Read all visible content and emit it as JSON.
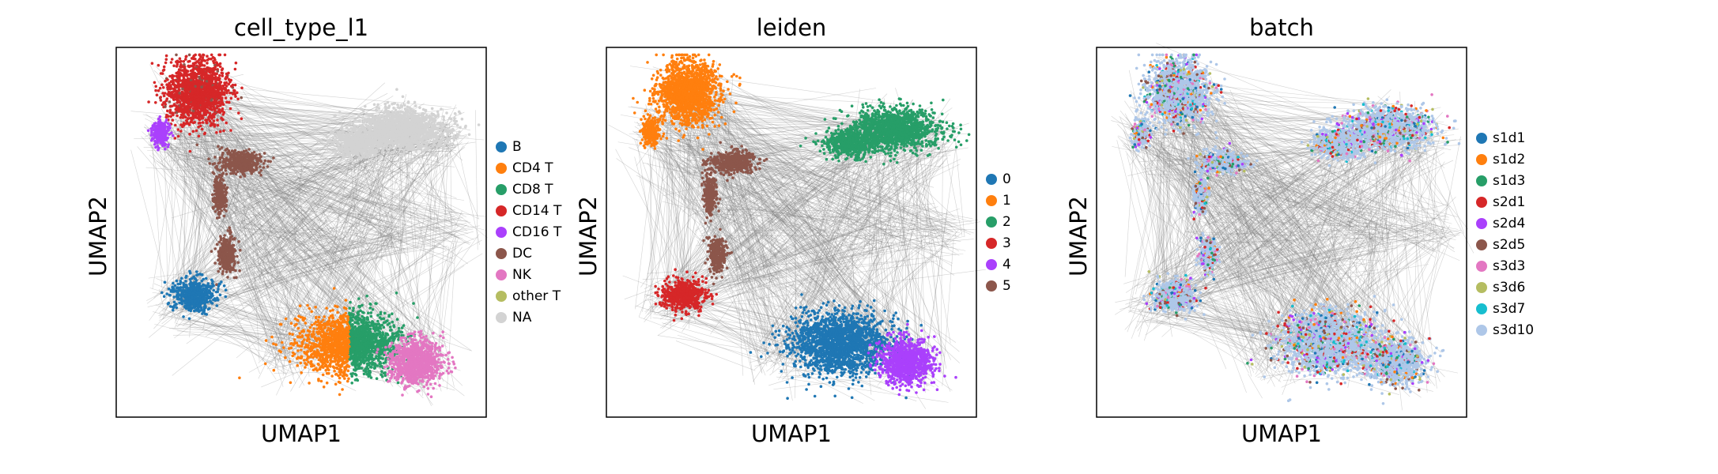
{
  "chart_data": [
    {
      "type": "scatter",
      "title": "cell_type_l1",
      "xlabel": "UMAP1",
      "ylabel": "UMAP2",
      "legend_placement": "right",
      "grid": false,
      "series": [
        {
          "name": "B",
          "color": "#1f77b4"
        },
        {
          "name": "CD4 T",
          "color": "#ff7f0e"
        },
        {
          "name": "CD8 T",
          "color": "#279e68"
        },
        {
          "name": "CD14 T",
          "color": "#d62728"
        },
        {
          "name": "CD16 T",
          "color": "#aa40fc"
        },
        {
          "name": "DC",
          "color": "#8c564b"
        },
        {
          "name": "NK",
          "color": "#e377c2"
        },
        {
          "name": "other T",
          "color": "#b5bd61"
        },
        {
          "name": "NA",
          "color": "#d3d3d3"
        }
      ]
    },
    {
      "type": "scatter",
      "title": "leiden",
      "xlabel": "UMAP1",
      "ylabel": "UMAP2",
      "legend_placement": "right",
      "grid": false,
      "series": [
        {
          "name": "0",
          "color": "#1f77b4"
        },
        {
          "name": "1",
          "color": "#ff7f0e"
        },
        {
          "name": "2",
          "color": "#279e68"
        },
        {
          "name": "3",
          "color": "#d62728"
        },
        {
          "name": "4",
          "color": "#aa40fc"
        },
        {
          "name": "5",
          "color": "#8c564b"
        }
      ]
    },
    {
      "type": "scatter",
      "title": "batch",
      "xlabel": "UMAP1",
      "ylabel": "UMAP2",
      "legend_placement": "right",
      "grid": false,
      "series": [
        {
          "name": "s1d1",
          "color": "#1f77b4"
        },
        {
          "name": "s1d2",
          "color": "#ff7f0e"
        },
        {
          "name": "s1d3",
          "color": "#279e68"
        },
        {
          "name": "s2d1",
          "color": "#d62728"
        },
        {
          "name": "s2d4",
          "color": "#aa40fc"
        },
        {
          "name": "s2d5",
          "color": "#8c564b"
        },
        {
          "name": "s3d3",
          "color": "#e377c2"
        },
        {
          "name": "s3d6",
          "color": "#b5bd61"
        },
        {
          "name": "s3d7",
          "color": "#17becf"
        },
        {
          "name": "s3d10",
          "color": "#aec7e8"
        }
      ]
    }
  ],
  "edge_color": "#808080"
}
